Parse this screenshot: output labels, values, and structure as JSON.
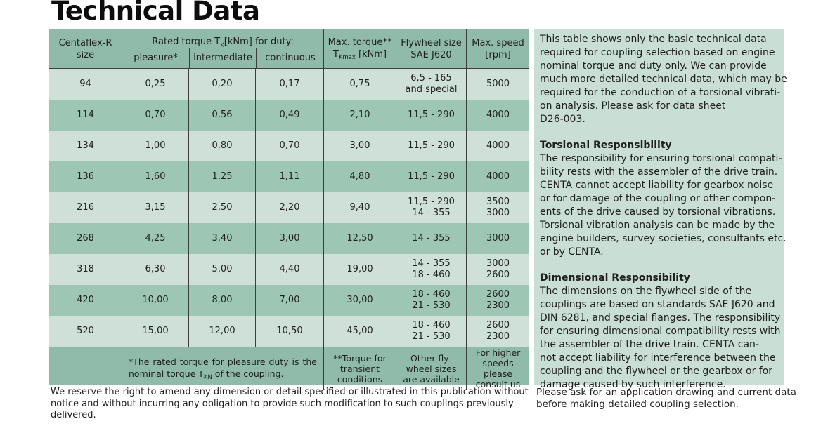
{
  "page": {
    "title": "Technical Data"
  },
  "colors": {
    "header_green": "#90bbaa",
    "row_light": "#cfe0d8",
    "row_dark": "#9ec6b4",
    "panel_green": "#c9ded4",
    "border": "#3d3d3d",
    "text": "#1f1f1f"
  },
  "table": {
    "header": {
      "col_size": [
        "Centaflex-R",
        "size"
      ],
      "rated_torque": {
        "prefix": "Rated torque T",
        "sub": "K",
        "suffix": " [kNm] for duty:"
      },
      "duty_cols": [
        "pleasure*",
        "intermediate",
        "continuous"
      ],
      "max_torque": {
        "line1": "Max. torque**",
        "prefix": "T",
        "sub": "Kmax",
        "suffix": " [kNm]"
      },
      "flywheel": [
        "Flywheel size",
        "SAE J620"
      ],
      "speed": [
        "Max. speed",
        "[rpm]"
      ]
    },
    "rows": [
      {
        "size": "94",
        "pleasure": "0,25",
        "intermediate": "0,20",
        "continuous": "0,17",
        "max_torque": "0,75",
        "flywheel": [
          "6,5 - 165",
          "and special"
        ],
        "speed": [
          "5000"
        ]
      },
      {
        "size": "114",
        "pleasure": "0,70",
        "intermediate": "0,56",
        "continuous": "0,49",
        "max_torque": "2,10",
        "flywheel": [
          "11,5 - 290"
        ],
        "speed": [
          "4000"
        ]
      },
      {
        "size": "134",
        "pleasure": "1,00",
        "intermediate": "0,80",
        "continuous": "0,70",
        "max_torque": "3,00",
        "flywheel": [
          "11,5 - 290"
        ],
        "speed": [
          "4000"
        ]
      },
      {
        "size": "136",
        "pleasure": "1,60",
        "intermediate": "1,25",
        "continuous": "1,11",
        "max_torque": "4,80",
        "flywheel": [
          "11,5 - 290"
        ],
        "speed": [
          "4000"
        ]
      },
      {
        "size": "216",
        "pleasure": "3,15",
        "intermediate": "2,50",
        "continuous": "2,20",
        "max_torque": "9,40",
        "flywheel": [
          "11,5 - 290",
          "14 - 355"
        ],
        "speed": [
          "3500",
          "3000"
        ]
      },
      {
        "size": "268",
        "pleasure": "4,25",
        "intermediate": "3,40",
        "continuous": "3,00",
        "max_torque": "12,50",
        "flywheel": [
          "14 - 355"
        ],
        "speed": [
          "3000"
        ]
      },
      {
        "size": "318",
        "pleasure": "6,30",
        "intermediate": "5,00",
        "continuous": "4,40",
        "max_torque": "19,00",
        "flywheel": [
          "14 - 355",
          "18 - 460"
        ],
        "speed": [
          "3000",
          "2600"
        ]
      },
      {
        "size": "420",
        "pleasure": "10,00",
        "intermediate": "8,00",
        "continuous": "7,00",
        "max_torque": "30,00",
        "flywheel": [
          "18 - 460",
          "21 - 530"
        ],
        "speed": [
          "2600",
          "2300"
        ]
      },
      {
        "size": "520",
        "pleasure": "15,00",
        "intermediate": "12,00",
        "continuous": "10,50",
        "max_torque": "45,00",
        "flywheel": [
          "18 - 460",
          "21 - 530"
        ],
        "speed": [
          "2600",
          "2300"
        ]
      }
    ],
    "footnotes": {
      "pleasure": {
        "p1": "*The rated torque for pleasure duty is the nominal torque T",
        "sub": "KN",
        "p2": " of the coupling."
      },
      "torque": [
        "**Torque for",
        "transient",
        "conditions"
      ],
      "flywheel": [
        "Other fly-",
        "wheel sizes",
        "are available"
      ],
      "speed": [
        "For higher",
        "speeds please",
        "consult us"
      ]
    }
  },
  "sidebar": {
    "intro": [
      "This table shows only the basic technical data",
      "required for coupling selection based on engine",
      "nominal torque and duty only. We can provide",
      "much more detailed technical data, which may be",
      "required for the conduction of a torsional vibrati-",
      "on analysis. Please ask for data sheet",
      "D26-003."
    ],
    "sections": [
      {
        "heading": "Torsional Responsibility",
        "body": [
          "The responsibility for ensuring torsional compati-",
          "bility rests with the assembler of the drive train.",
          "CENTA cannot accept liability for gearbox noise",
          "or for damage of the coupling or other compon-",
          "ents of the drive caused by torsional vibrations.",
          "Torsional vibration analysis can be made by the",
          "engine builders, survey societies, consultants etc.",
          "or by CENTA."
        ]
      },
      {
        "heading": "Dimensional Responsibility",
        "body": [
          "The dimensions on the flywheel side of the",
          "couplings are based on standards SAE J620 and",
          "DIN 6281, and special flanges. The responsibility",
          "for ensuring dimensional compatibility rests with",
          "the assembler of the drive train. CENTA can-",
          "not accept liability for interference between the",
          "coupling and the flywheel or the gearbox or for",
          "damage caused by such interference."
        ]
      }
    ]
  },
  "footer": {
    "left": [
      "We reserve the right to amend any dimension or detail specified or illustrated in this publication without",
      "notice and without incurring any obligation to provide such modification to such couplings previously",
      "delivered."
    ],
    "right": [
      "Please ask for an application drawing and current data",
      "before making detailed coupling selection."
    ]
  }
}
